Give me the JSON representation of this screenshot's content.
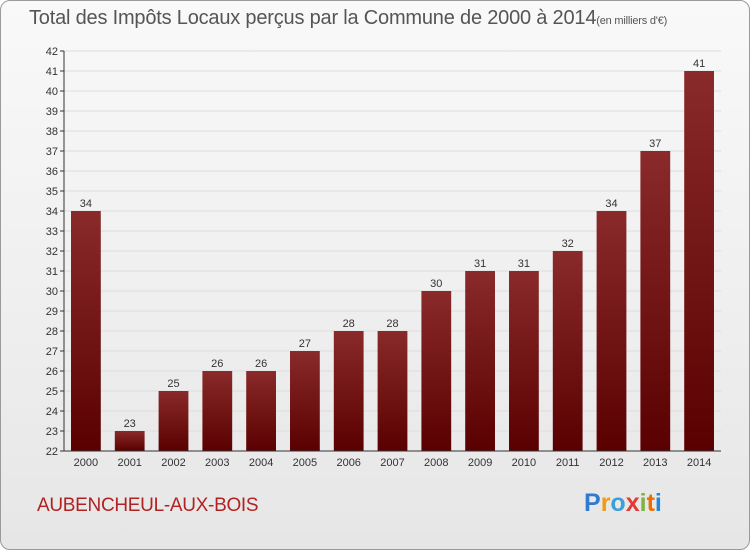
{
  "colors": {
    "bar_top": "#8a2a2a",
    "bar_bottom": "#5a0000",
    "grid": "#dddddd",
    "axis": "#333333",
    "commune": "#b22222"
  },
  "header": {
    "title": "Total des Impôts Locaux perçus par la Commune de 2000 à 2014",
    "unit": "(en milliers d'€)"
  },
  "footer": {
    "commune": "AUBENCHEUL-AUX-BOIS",
    "logo_letters": [
      "P",
      "r",
      "o",
      "x",
      "i",
      "t",
      "i"
    ]
  },
  "chart_data": {
    "type": "bar",
    "title": "Total des Impôts Locaux perçus par la Commune de 2000 à 2014",
    "unit": "(en milliers d'€)",
    "xlabel": "",
    "ylabel": "",
    "ylim": [
      22,
      42
    ],
    "yticks": [
      22,
      23,
      24,
      25,
      26,
      27,
      28,
      29,
      30,
      31,
      32,
      33,
      34,
      35,
      36,
      37,
      38,
      39,
      40,
      41,
      42
    ],
    "categories": [
      "2000",
      "2001",
      "2002",
      "2003",
      "2004",
      "2005",
      "2006",
      "2007",
      "2008",
      "2009",
      "2010",
      "2011",
      "2012",
      "2013",
      "2014"
    ],
    "values": [
      34,
      23,
      25,
      26,
      26,
      27,
      28,
      28,
      30,
      31,
      31,
      32,
      34,
      37,
      41
    ],
    "grid": true
  }
}
